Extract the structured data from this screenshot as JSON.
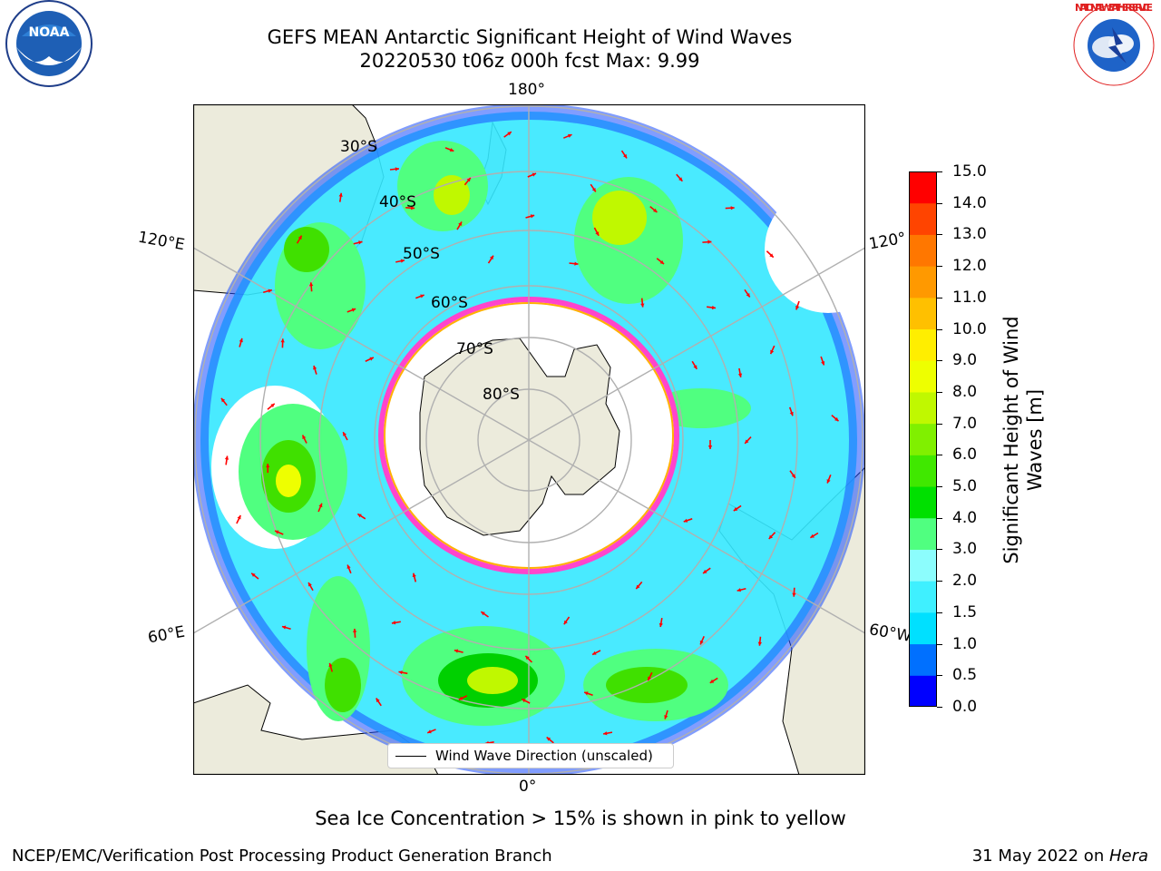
{
  "title": {
    "line1": "GEFS MEAN Antarctic Significant Height of Wind Waves",
    "line2": "20220530 t06z 000h fcst   Max: 9.99"
  },
  "map": {
    "projection": "south-polar-stereographic",
    "lon_labels": {
      "top": "180°",
      "left_upper": "120°E",
      "right_upper": "120°",
      "left_lower": "60°E",
      "right_lower": "60°W",
      "bottom": "0°"
    },
    "lat_labels": [
      "30°S",
      "40°S",
      "50°S",
      "60°S",
      "70°S",
      "80°S"
    ],
    "colors": {
      "land": "#ecebdc",
      "ocean_missing": "#ffffff",
      "arrow": "#ff0000",
      "gridline": "#b0b0b0",
      "sea_ice": "#ff44cc"
    }
  },
  "legend": {
    "label": "Wind Wave Direction (unscaled)"
  },
  "colorbar": {
    "label_line1": "Significant Height of Wind",
    "label_line2": "Waves [m]",
    "ticks": [
      "0.0",
      "0.5",
      "1.0",
      "1.5",
      "2.0",
      "3.0",
      "4.0",
      "5.0",
      "6.0",
      "7.0",
      "8.0",
      "9.0",
      "10.0",
      "11.0",
      "12.0",
      "13.0",
      "14.0",
      "15.0"
    ],
    "colors": [
      "#0000ff",
      "#0070ff",
      "#00e0ff",
      "#3ff0ff",
      "#8cfdfd",
      "#50ff80",
      "#00e000",
      "#40e800",
      "#80f000",
      "#c0f800",
      "#eeff00",
      "#ffee00",
      "#ffc000",
      "#ff9900",
      "#ff7700",
      "#ff4400",
      "#ff0000"
    ]
  },
  "footnote": "Sea Ice Concentration > 15% is shown in pink to yellow",
  "credit": "NCEP/EMC/Verification Post Processing Product Generation Branch",
  "run_date": {
    "text": "31 May 2022 on ",
    "machine": "Hera"
  },
  "logos": {
    "noaa": "NOAA",
    "nws": "NATIONAL WEATHER SERVICE"
  }
}
